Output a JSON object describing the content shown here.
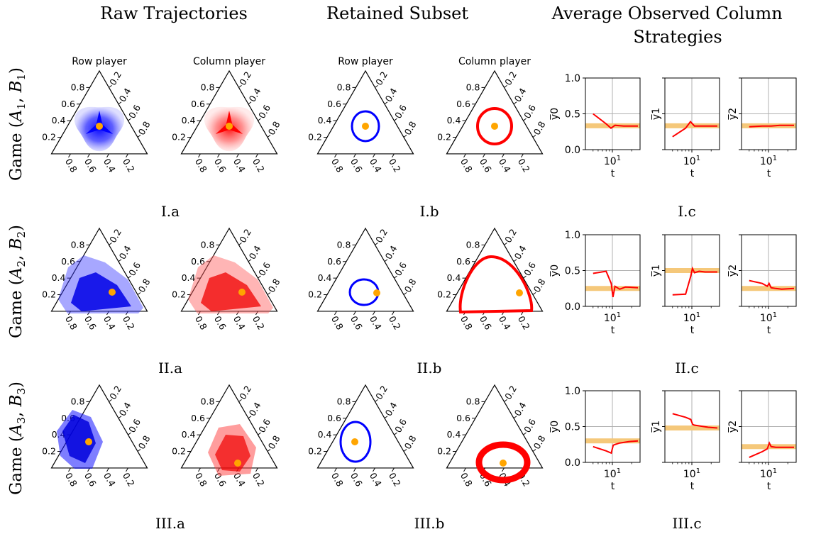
{
  "figure": {
    "column_headers": [
      "Raw Trajectories",
      "Retained Subset",
      "Average Observed Column Strategies"
    ],
    "player_labels": [
      "Row player",
      "Column player"
    ],
    "row_games": [
      {
        "prefix": "Game (",
        "a": "A",
        "a_sub": "1",
        "b": "B",
        "b_sub": "1",
        "suffix": ")"
      },
      {
        "prefix": "Game (",
        "a": "A",
        "a_sub": "2",
        "b": "B",
        "b_sub": "2",
        "suffix": ")"
      },
      {
        "prefix": "Game (",
        "a": "A",
        "a_sub": "3",
        "b": "B",
        "b_sub": "3",
        "suffix": ")"
      }
    ],
    "panel_labels": [
      [
        "I.a",
        "I.b",
        "I.c"
      ],
      [
        "II.a",
        "II.b",
        "II.c"
      ],
      [
        "III.a",
        "III.b",
        "III.c"
      ]
    ],
    "ternary_left_ticks": [
      "0.2",
      "0.4",
      "0.6",
      "0.8"
    ],
    "ternary_right_ticks": [
      "0.2",
      "0.4",
      "0.6",
      "0.8"
    ],
    "ternary_bottom_ticks": [
      "0.8",
      "0.6",
      "0.4",
      "0.2"
    ],
    "colors": {
      "row_player": "#0000ff",
      "column_player": "#ff0000",
      "equilibrium": "#ffa500",
      "nash_band": "#f5c87a",
      "line": "#ff0000"
    }
  },
  "chart_data": [
    {
      "type": "ternary",
      "panel": "I.a",
      "series": [
        {
          "name": "Row player",
          "color": "#0000ff",
          "kind": "raw trajectories",
          "center": [
            0.333,
            0.333,
            0.333
          ]
        },
        {
          "name": "Column player",
          "color": "#ff0000",
          "kind": "raw trajectories",
          "center": [
            0.333,
            0.333,
            0.333
          ]
        }
      ],
      "equilibrium": [
        0.333,
        0.333,
        0.333
      ]
    },
    {
      "type": "ternary",
      "panel": "I.b",
      "series": [
        {
          "name": "Row player",
          "color": "#0000ff",
          "kind": "retained cycle",
          "center": [
            0.333,
            0.333,
            0.333
          ]
        },
        {
          "name": "Column player",
          "color": "#ff0000",
          "kind": "retained cycle",
          "center": [
            0.333,
            0.333,
            0.333
          ]
        }
      ],
      "equilibrium": [
        0.333,
        0.333,
        0.333
      ]
    },
    {
      "type": "line",
      "panel": "I.c",
      "xlabel": "t",
      "xscale": "log",
      "x_ticks": [
        "10^1"
      ],
      "ylim": [
        0,
        1
      ],
      "y_ticks": [
        "0.0",
        "0.5",
        "1.0"
      ],
      "grid": true,
      "subplots": [
        {
          "ylabel": "y̅0",
          "nash": 0.333,
          "x": [
            5,
            8,
            9.5,
            11,
            15,
            25
          ],
          "y": [
            0.5,
            0.36,
            0.3,
            0.34,
            0.33,
            0.33
          ]
        },
        {
          "ylabel": "y̅1",
          "nash": 0.333,
          "x": [
            5,
            8,
            9.5,
            11,
            15,
            25
          ],
          "y": [
            0.18,
            0.3,
            0.39,
            0.33,
            0.33,
            0.33
          ]
        },
        {
          "ylabel": "y̅2",
          "nash": 0.333,
          "x": [
            5,
            8,
            9.5,
            11,
            15,
            25
          ],
          "y": [
            0.32,
            0.33,
            0.33,
            0.33,
            0.34,
            0.34
          ]
        }
      ]
    },
    {
      "type": "ternary",
      "panel": "II.a",
      "series": [
        {
          "name": "Row player",
          "color": "#0000ff",
          "kind": "raw trajectories"
        },
        {
          "name": "Column player",
          "color": "#ff0000",
          "kind": "raw trajectories"
        }
      ],
      "equilibrium": [
        0.25,
        0.5,
        0.25
      ]
    },
    {
      "type": "ternary",
      "panel": "II.b",
      "series": [
        {
          "name": "Row player",
          "color": "#0000ff",
          "kind": "retained cycle"
        },
        {
          "name": "Column player",
          "color": "#ff0000",
          "kind": "retained cycle"
        }
      ],
      "equilibrium": [
        0.25,
        0.5,
        0.25
      ]
    },
    {
      "type": "line",
      "panel": "II.c",
      "xlabel": "t",
      "xscale": "log",
      "x_ticks": [
        "10^1"
      ],
      "ylim": [
        0,
        1
      ],
      "y_ticks": [
        "0.0",
        "0.5",
        "1.0"
      ],
      "grid": true,
      "subplots": [
        {
          "ylabel": "y̅0",
          "nash": 0.25,
          "x": [
            5,
            8,
            9.6,
            10.2,
            11,
            13,
            16,
            25
          ],
          "y": [
            0.46,
            0.49,
            0.32,
            0.13,
            0.28,
            0.24,
            0.27,
            0.26
          ]
        },
        {
          "ylabel": "y̅1",
          "nash": 0.5,
          "x": [
            5,
            8,
            9.6,
            10.2,
            11,
            13,
            16,
            25
          ],
          "y": [
            0.16,
            0.17,
            0.42,
            0.53,
            0.47,
            0.49,
            0.48,
            0.48
          ]
        },
        {
          "ylabel": "y̅2",
          "nash": 0.25,
          "x": [
            5,
            8,
            9.6,
            10.2,
            11,
            13,
            16,
            25
          ],
          "y": [
            0.36,
            0.32,
            0.28,
            0.32,
            0.26,
            0.25,
            0.24,
            0.25
          ]
        }
      ]
    },
    {
      "type": "ternary",
      "panel": "III.a",
      "series": [
        {
          "name": "Row player",
          "color": "#0000ff",
          "kind": "raw trajectories"
        },
        {
          "name": "Column player",
          "color": "#ff0000",
          "kind": "raw trajectories"
        }
      ],
      "equilibrium": [
        0.3,
        0.48,
        0.22
      ]
    },
    {
      "type": "ternary",
      "panel": "III.b",
      "series": [
        {
          "name": "Row player",
          "color": "#0000ff",
          "kind": "retained cycle"
        },
        {
          "name": "Column player",
          "color": "#ff0000",
          "kind": "retained cycle"
        }
      ],
      "equilibrium": [
        0.3,
        0.48,
        0.22
      ]
    },
    {
      "type": "line",
      "panel": "III.c",
      "xlabel": "t",
      "xscale": "log",
      "x_ticks": [
        "10^1"
      ],
      "ylim": [
        0,
        1
      ],
      "y_ticks": [
        "0.0",
        "0.5",
        "1.0"
      ],
      "grid": true,
      "subplots": [
        {
          "ylabel": "y̅0",
          "nash": 0.3,
          "x": [
            5,
            8,
            9.6,
            10.3,
            11,
            13,
            18,
            25
          ],
          "y": [
            0.22,
            0.16,
            0.13,
            0.24,
            0.25,
            0.27,
            0.29,
            0.3
          ]
        },
        {
          "ylabel": "y̅1",
          "nash": 0.48,
          "x": [
            5,
            8,
            9.6,
            10.3,
            11,
            13,
            18,
            25
          ],
          "y": [
            0.68,
            0.63,
            0.6,
            0.53,
            0.52,
            0.51,
            0.49,
            0.48
          ]
        },
        {
          "ylabel": "y̅2",
          "nash": 0.22,
          "x": [
            5,
            8,
            9.6,
            10.3,
            11,
            13,
            18,
            25
          ],
          "y": [
            0.07,
            0.15,
            0.19,
            0.27,
            0.22,
            0.21,
            0.21,
            0.21
          ]
        }
      ]
    }
  ]
}
